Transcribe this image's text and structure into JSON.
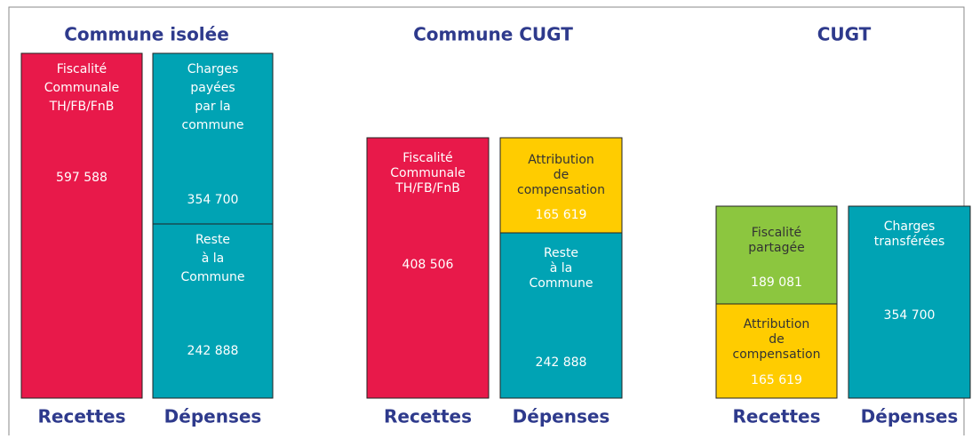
{
  "panels": [
    {
      "title": "Commune isolée",
      "columns": [
        {
          "label": "Recettes",
          "blocks": [
            {
              "color": "#e8194a",
              "text": [
                "Fiscalité",
                "Communale",
                "TH/FB/FnB"
              ],
              "value": "597 588"
            }
          ]
        },
        {
          "label": "Dépenses",
          "blocks": [
            {
              "color": "#00a3b4",
              "text": [
                "Charges",
                "payées",
                "par la",
                "commune"
              ],
              "value": "354 700"
            },
            {
              "color": "#00a3b4",
              "text": [
                "Reste",
                "à la",
                "Commune"
              ],
              "value": "242 888"
            }
          ]
        }
      ]
    },
    {
      "title": "Commune CUGT",
      "columns": [
        {
          "label": "Recettes",
          "blocks": [
            {
              "color": "#e8194a",
              "text": [
                "Fiscalité",
                "Communale",
                "TH/FB/FnB"
              ],
              "value": "408 506"
            }
          ]
        },
        {
          "label": "Dépenses",
          "blocks": [
            {
              "color": "#ffcc00",
              "text": [
                "Attribution",
                "de",
                "compensation"
              ],
              "value": "165 619"
            },
            {
              "color": "#00a3b4",
              "text": [
                "Reste",
                "à la",
                "Commune"
              ],
              "value": "242 888"
            }
          ]
        }
      ]
    },
    {
      "title": "CUGT",
      "columns": [
        {
          "label": "Recettes",
          "blocks": [
            {
              "color": "#8cc63f",
              "text": [
                "Fiscalité",
                "partagée"
              ],
              "value": "189 081"
            },
            {
              "color": "#ffcc00",
              "text": [
                "Attribution",
                "de",
                "compensation"
              ],
              "value": "165 619"
            }
          ]
        },
        {
          "label": "Dépenses",
          "blocks": [
            {
              "color": "#00a3b4",
              "text": [
                "Charges",
                "transférées"
              ],
              "value": "354 700"
            }
          ]
        }
      ]
    }
  ]
}
